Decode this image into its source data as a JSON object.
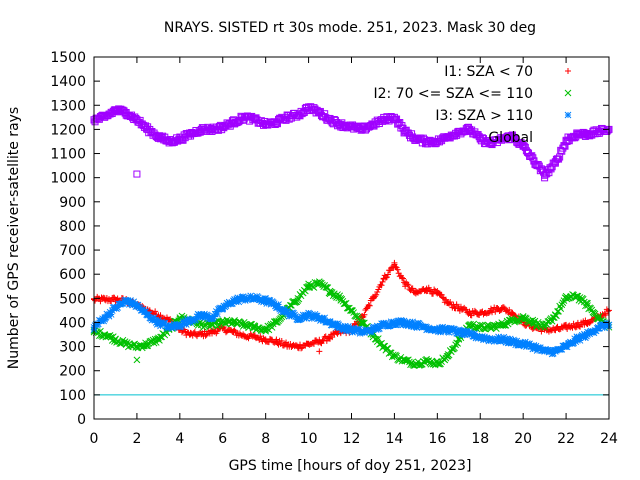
{
  "chart_data": {
    "type": "scatter",
    "title": "NRAYS. SISTED rt 30s mode. 251, 2023. Mask 30 deg",
    "xlabel": "GPS time [hours of doy 251, 2023]",
    "ylabel": "Number of GPS receiver-satellite rays",
    "xlim": [
      0,
      24
    ],
    "ylim": [
      0,
      1500
    ],
    "xticks": [
      0,
      2,
      4,
      6,
      8,
      10,
      12,
      14,
      16,
      18,
      20,
      22,
      24
    ],
    "yticks": [
      0,
      100,
      200,
      300,
      400,
      500,
      600,
      700,
      800,
      900,
      1000,
      1100,
      1200,
      1300,
      1400,
      1500
    ],
    "legend_position": "top-right",
    "series": [
      {
        "name": "I1: SZA < 70",
        "color": "#ff0000",
        "marker": "plus",
        "x": [
          0,
          0.5,
          1,
          1.5,
          2,
          2.5,
          3,
          3.5,
          4,
          4.5,
          5,
          5.5,
          6,
          6.5,
          7,
          7.5,
          8,
          8.5,
          9,
          9.5,
          10,
          10.5,
          11,
          11.5,
          12,
          12.5,
          13,
          13.5,
          14,
          14.5,
          15,
          15.5,
          16,
          16.5,
          17,
          17.5,
          18,
          18.5,
          19,
          19.5,
          20,
          20.5,
          21,
          21.5,
          22,
          22.5,
          23,
          23.5,
          24
        ],
        "y": [
          495,
          495,
          495,
          490,
          470,
          450,
          430,
          410,
          370,
          350,
          350,
          360,
          375,
          360,
          345,
          340,
          330,
          320,
          305,
          300,
          310,
          320,
          340,
          360,
          370,
          420,
          500,
          580,
          640,
          560,
          520,
          540,
          520,
          480,
          460,
          440,
          440,
          450,
          460,
          440,
          400,
          380,
          370,
          370,
          380,
          390,
          400,
          420,
          450
        ]
      },
      {
        "name": "I2: 70 <= SZA <= 110",
        "color": "#00c000",
        "marker": "cross",
        "x": [
          0,
          0.5,
          1,
          1.5,
          2,
          2.5,
          3,
          3.5,
          4,
          4.5,
          5,
          5.5,
          6,
          6.5,
          7,
          7.5,
          8,
          8.5,
          9,
          9.5,
          10,
          10.5,
          11,
          11.5,
          12,
          12.5,
          13,
          13.5,
          14,
          14.5,
          15,
          15.5,
          16,
          16.5,
          17,
          17.5,
          18,
          18.5,
          19,
          19.5,
          20,
          20.5,
          21,
          21.5,
          22,
          22.5,
          23,
          23.5,
          24
        ],
        "y": [
          360,
          350,
          330,
          310,
          300,
          310,
          330,
          370,
          420,
          410,
          390,
          390,
          400,
          400,
          390,
          380,
          370,
          400,
          450,
          500,
          550,
          560,
          530,
          500,
          450,
          400,
          350,
          300,
          260,
          240,
          230,
          240,
          230,
          260,
          330,
          390,
          380,
          380,
          390,
          410,
          420,
          400,
          380,
          430,
          500,
          510,
          470,
          420,
          380
        ]
      },
      {
        "name": "I3: SZA > 110",
        "color": "#0080ff",
        "marker": "star",
        "x": [
          0,
          0.5,
          1,
          1.5,
          2,
          2.5,
          3,
          3.5,
          4,
          4.5,
          5,
          5.5,
          6,
          6.5,
          7,
          7.5,
          8,
          8.5,
          9,
          9.5,
          10,
          10.5,
          11,
          11.5,
          12,
          12.5,
          13,
          13.5,
          14,
          14.5,
          15,
          15.5,
          16,
          16.5,
          17,
          17.5,
          18,
          18.5,
          19,
          19.5,
          20,
          20.5,
          21,
          21.5,
          22,
          22.5,
          23,
          23.5,
          24
        ],
        "y": [
          380,
          420,
          460,
          490,
          470,
          430,
          400,
          380,
          390,
          410,
          430,
          420,
          460,
          490,
          500,
          500,
          490,
          470,
          440,
          420,
          430,
          420,
          400,
          380,
          370,
          360,
          370,
          390,
          400,
          400,
          390,
          380,
          370,
          370,
          360,
          350,
          340,
          330,
          330,
          320,
          310,
          300,
          280,
          280,
          300,
          330,
          350,
          380,
          390
        ]
      },
      {
        "name": "Global",
        "color": "#a000ff",
        "marker": "square",
        "x": [
          0,
          0.5,
          1,
          1.5,
          2,
          2.5,
          3,
          3.5,
          4,
          4.5,
          5,
          5.5,
          6,
          6.5,
          7,
          7.5,
          8,
          8.5,
          9,
          9.5,
          10,
          10.5,
          11,
          11.5,
          12,
          12.5,
          13,
          13.5,
          14,
          14.5,
          15,
          15.5,
          16,
          16.5,
          17,
          17.5,
          18,
          18.5,
          19,
          19.5,
          20,
          20.5,
          21,
          21.5,
          22,
          22.5,
          23,
          23.5,
          24
        ],
        "y": [
          1240,
          1250,
          1280,
          1270,
          1240,
          1200,
          1170,
          1150,
          1160,
          1180,
          1200,
          1200,
          1210,
          1230,
          1250,
          1240,
          1220,
          1230,
          1250,
          1260,
          1290,
          1270,
          1240,
          1220,
          1210,
          1200,
          1220,
          1240,
          1250,
          1190,
          1160,
          1150,
          1150,
          1170,
          1190,
          1200,
          1160,
          1140,
          1160,
          1170,
          1130,
          1070,
          1010,
          1060,
          1150,
          1180,
          1180,
          1190,
          1200
        ]
      },
      {
        "name": "",
        "color": "#00c0d0",
        "marker": "line",
        "x": [
          0,
          24
        ],
        "y": [
          100,
          100
        ]
      }
    ],
    "outliers": [
      {
        "series": "Global",
        "x": 2.0,
        "y": 1015
      },
      {
        "series": "I2: 70 <= SZA <= 110",
        "x": 2.0,
        "y": 245
      },
      {
        "series": "I1: SZA < 70",
        "x": 10.5,
        "y": 280
      }
    ]
  }
}
